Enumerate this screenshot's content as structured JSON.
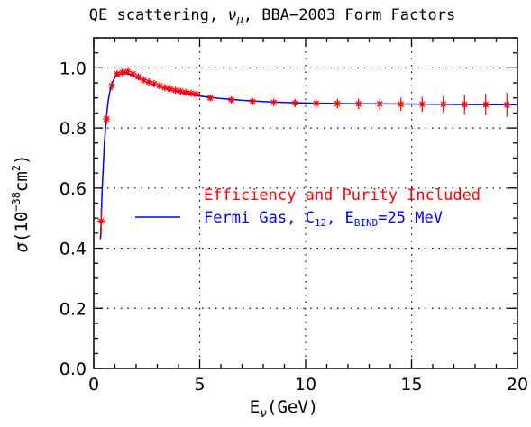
{
  "chart_data": {
    "type": "line",
    "title": "QE scattering, ν_μ, BBA−2003 Form Factors",
    "title_parts": {
      "pre": "QE scattering, ",
      "nu": "ν",
      "mu": "μ",
      "post": ", BBA−2003 Form Factors"
    },
    "xlabel": "E_ν(GeV)",
    "xlabel_parts": {
      "main": "E",
      "sub": "ν",
      "post": "(GeV)"
    },
    "ylabel": "σ(10^−38 cm^2)",
    "ylabel_parts": {
      "sigma": "σ",
      "open": "(10",
      "exp1": "−38",
      "mid": "cm",
      "exp2": "2",
      "close": ")"
    },
    "xlim": [
      0,
      20
    ],
    "ylim": [
      0,
      1.1
    ],
    "x_ticks": [
      0,
      5,
      10,
      15,
      20
    ],
    "y_ticks": [
      0.0,
      0.2,
      0.4,
      0.6,
      0.8,
      1.0
    ],
    "x_tick_labels": [
      "0",
      "5",
      "10",
      "15",
      "20"
    ],
    "y_tick_labels": [
      "0.0",
      "0.2",
      "0.4",
      "0.6",
      "0.8",
      "1.0"
    ],
    "grid": true,
    "legend_position": "center-right",
    "series": [
      {
        "name": "Efficiency and Purity Included",
        "color": "#ff0000",
        "marker": "asterisk",
        "x": [
          0.35,
          0.6,
          0.85,
          1.1,
          1.35,
          1.6,
          1.85,
          2.1,
          2.35,
          2.6,
          2.85,
          3.1,
          3.35,
          3.6,
          3.85,
          4.1,
          4.35,
          4.6,
          4.85,
          5.5,
          6.5,
          7.5,
          8.5,
          9.5,
          10.5,
          11.5,
          12.5,
          13.5,
          14.5,
          15.5,
          16.5,
          17.5,
          18.5,
          19.5
        ],
        "y": [
          0.49,
          0.83,
          0.94,
          0.98,
          0.985,
          0.988,
          0.98,
          0.97,
          0.96,
          0.953,
          0.947,
          0.94,
          0.934,
          0.93,
          0.925,
          0.922,
          0.918,
          0.915,
          0.912,
          0.9,
          0.893,
          0.888,
          0.885,
          0.883,
          0.882,
          0.881,
          0.88,
          0.88,
          0.879,
          0.879,
          0.879,
          0.878,
          0.878,
          0.877
        ],
        "err": [
          0.045,
          0.02,
          0.015,
          0.012,
          0.01,
          0.01,
          0.008,
          0.006,
          0.006,
          0.006,
          0.006,
          0.006,
          0.006,
          0.006,
          0.006,
          0.006,
          0.006,
          0.006,
          0.006,
          0.008,
          0.01,
          0.01,
          0.012,
          0.014,
          0.015,
          0.016,
          0.018,
          0.02,
          0.022,
          0.025,
          0.028,
          0.032,
          0.036,
          0.04
        ]
      },
      {
        "name": "Fermi Gas, C12, EBIND=25 MeV",
        "name_parts": {
          "pre": "Fermi Gas, C",
          "sub1": "12",
          "mid": ", E",
          "sub2": "BIND",
          "post": "=25 MeV"
        },
        "color": "#0000ff",
        "marker": "line",
        "x": [
          0.32,
          0.4,
          0.5,
          0.6,
          0.7,
          0.8,
          0.9,
          1.0,
          1.2,
          1.4,
          1.6,
          1.8,
          2.0,
          2.5,
          3.0,
          3.5,
          4.0,
          4.5,
          5.0,
          6.0,
          7.0,
          8.0,
          9.0,
          10.0,
          12.0,
          14.0,
          16.0,
          18.0,
          20.0
        ],
        "y": [
          0.43,
          0.6,
          0.75,
          0.84,
          0.9,
          0.935,
          0.955,
          0.968,
          0.978,
          0.981,
          0.98,
          0.975,
          0.968,
          0.952,
          0.939,
          0.928,
          0.919,
          0.912,
          0.906,
          0.898,
          0.892,
          0.888,
          0.885,
          0.883,
          0.881,
          0.88,
          0.879,
          0.878,
          0.877
        ]
      }
    ]
  }
}
